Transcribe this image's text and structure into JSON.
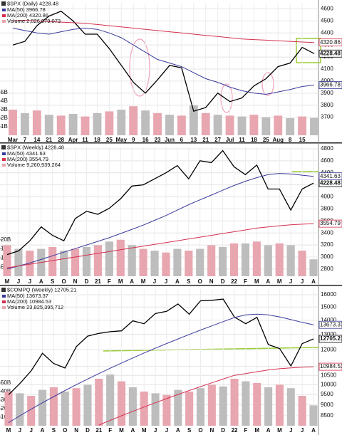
{
  "chart_data": [
    {
      "type": "line",
      "title": "$SPX (Daily) 4228.48",
      "log": false,
      "grid": true,
      "categories": [
        "Mar",
        "7",
        "14",
        "21",
        "28",
        "Apr",
        "11",
        "18",
        "25",
        "May",
        "9",
        "16",
        "23",
        "Jun",
        "6",
        "13",
        "21",
        "27",
        "Jul",
        "11",
        "18",
        "25",
        "Aug",
        "8",
        "15",
        null
      ],
      "series": [
        {
          "color": "#000000",
          "values": [
            4300,
            4330,
            4460,
            4540,
            4580,
            4500,
            4390,
            4390,
            4270,
            4130,
            3990,
            3900,
            4010,
            4130,
            4110,
            3750,
            3780,
            3900,
            3830,
            3860,
            3960,
            4020,
            4120,
            4150,
            4280,
            4228.48
          ]
        },
        {
          "name": "MA(50) 3966.78",
          "color": "#3a3a9c",
          "values": [
            4440,
            4420,
            4400,
            4390,
            4410,
            4430,
            4440,
            4430,
            4400,
            4360,
            4300,
            4240,
            4180,
            4150,
            4120,
            4070,
            4020,
            3990,
            3950,
            3920,
            3900,
            3890,
            3910,
            3930,
            3955,
            3966.78
          ]
        },
        {
          "name": "MA(200) 4320.86",
          "color": "#d4304f",
          "values": [
            4500,
            4505,
            4500,
            4495,
            4490,
            4485,
            4480,
            4470,
            4460,
            4450,
            4440,
            4430,
            4420,
            4410,
            4400,
            4390,
            4380,
            4370,
            4360,
            4350,
            4345,
            4340,
            4335,
            4330,
            4325,
            4320.86
          ]
        },
        {
          "name": "Volume 2,026,979,073",
          "color": "#e8a6b0",
          "axis": "y2",
          "type": "bar",
          "values": [
            3.0,
            2.6,
            2.9,
            2.4,
            2.3,
            2.5,
            2.2,
            2.6,
            2.8,
            3.0,
            3.4,
            2.9,
            2.6,
            2.4,
            2.3,
            3.5,
            2.6,
            2.4,
            2.3,
            2.2,
            2.4,
            2.1,
            2.3,
            2.0,
            2.2,
            2.03
          ]
        }
      ],
      "ylim": [
        3550,
        4650
      ],
      "yticks": [
        3700,
        3800,
        3900,
        4000,
        4100,
        4200,
        4300,
        4400,
        4500,
        4600
      ],
      "y2lim": [
        0,
        15.5
      ],
      "y2ticks": [
        {
          "value": 1,
          "label": "1B"
        },
        {
          "value": 2,
          "label": "2B"
        },
        {
          "value": 3,
          "label": "3B"
        },
        {
          "value": 4,
          "label": "4B"
        },
        {
          "value": 5,
          "label": "5B"
        }
      ]
    },
    {
      "type": "line",
      "title": "$SPX (Weekly) 4228.48",
      "log": false,
      "grid": true,
      "categories": [
        "M",
        "J",
        "J",
        "A",
        "S",
        "O",
        "N",
        "D",
        "21",
        "F",
        "M",
        "A",
        "M",
        "J",
        "J",
        "A",
        "S",
        "O",
        "N",
        "D",
        "22",
        "F",
        "M",
        "A",
        "M",
        "J",
        "J",
        "A"
      ],
      "series": [
        {
          "color": "#000000",
          "values": [
            3040,
            3100,
            3270,
            3500,
            3360,
            3270,
            3640,
            3760,
            3710,
            3810,
            3970,
            4180,
            4200,
            4300,
            4400,
            4520,
            4300,
            4600,
            4570,
            4770,
            4500,
            4370,
            4530,
            4130,
            4130,
            3780,
            4130,
            4228.48
          ]
        },
        {
          "name": "MA(50) 4341.63",
          "color": "#3a3a9c",
          "values": [
            2800,
            2850,
            2900,
            2960,
            3020,
            3080,
            3140,
            3200,
            3260,
            3320,
            3390,
            3460,
            3530,
            3610,
            3690,
            3780,
            3870,
            3950,
            4030,
            4110,
            4190,
            4260,
            4320,
            4370,
            4390,
            4380,
            4360,
            4341.63
          ]
        },
        {
          "name": "MA(200) 3554.79",
          "color": "#d4304f",
          "values": [
            2820,
            2850,
            2880,
            2910,
            2940,
            2970,
            3000,
            3030,
            3060,
            3090,
            3120,
            3150,
            3180,
            3210,
            3240,
            3270,
            3300,
            3330,
            3360,
            3390,
            3420,
            3450,
            3480,
            3500,
            3520,
            3535,
            3545,
            3554.79
          ]
        },
        {
          "name": "Volume 9,260,939,264",
          "color": "#e8a6b0",
          "axis": "y2",
          "type": "bar",
          "values": [
            17,
            15,
            14,
            15,
            16,
            14,
            15,
            16,
            17,
            19,
            20,
            17,
            15,
            14,
            13,
            15,
            14,
            15,
            17,
            16,
            18,
            18,
            19,
            17,
            18,
            17,
            14,
            9.26
          ]
        }
      ],
      "ylim": [
        2680,
        4835
      ],
      "yticks": [
        2800,
        3000,
        3200,
        3400,
        3600,
        3800,
        4000,
        4200,
        4400,
        4600,
        4800
      ],
      "y2lim": [
        0,
        71
      ],
      "y2ticks": [
        {
          "value": 5,
          "label": "5B"
        },
        {
          "value": 10,
          "label": "10B"
        },
        {
          "value": 15,
          "label": "15B"
        },
        {
          "value": 20,
          "label": "20B"
        }
      ]
    },
    {
      "type": "line",
      "title": "$COMPQ (Weekly) 12705.21",
      "log": true,
      "grid": true,
      "categories": [
        "M",
        "J",
        "J",
        "A",
        "S",
        "O",
        "N",
        "D",
        "21",
        "F",
        "M",
        "A",
        "M",
        "J",
        "J",
        "A",
        "S",
        "O",
        "N",
        "D",
        "22",
        "F",
        "M",
        "A",
        "M",
        "J",
        "J",
        "A"
      ],
      "series": [
        {
          "color": "#000000",
          "values": [
            9490,
            10060,
            10750,
            11780,
            11170,
            10910,
            12200,
            12890,
            13070,
            13190,
            13250,
            13960,
            13750,
            14500,
            14670,
            15250,
            14450,
            15500,
            15540,
            15640,
            14240,
            13750,
            14220,
            12330,
            12080,
            11030,
            12390,
            12705.21
          ]
        },
        {
          "name": "MA(50) 13673.37",
          "color": "#3a3a9c",
          "values": [
            8200,
            8500,
            8800,
            9100,
            9400,
            9700,
            10000,
            10300,
            10600,
            10900,
            11200,
            11500,
            11800,
            12100,
            12400,
            12700,
            13000,
            13300,
            13600,
            13900,
            14200,
            14400,
            14450,
            14400,
            14250,
            14050,
            13850,
            13673.37
          ]
        },
        {
          "name": "MA(200) 10984.53",
          "color": "#d4304f",
          "values": [
            null,
            null,
            null,
            null,
            null,
            null,
            null,
            null,
            8100,
            8300,
            8500,
            8700,
            8900,
            9100,
            9300,
            9500,
            9700,
            9900,
            10100,
            10300,
            10500,
            10600,
            10700,
            10800,
            10870,
            10920,
            10960,
            10984.53
          ]
        },
        {
          "name": "Volume 23,825,395,712",
          "color": "#e8a6b0",
          "axis": "y2",
          "type": "bar",
          "values": [
            40,
            38,
            35,
            42,
            45,
            40,
            44,
            48,
            55,
            60,
            52,
            45,
            40,
            38,
            36,
            42,
            40,
            44,
            48,
            46,
            55,
            52,
            50,
            45,
            48,
            44,
            35,
            23.83
          ]
        }
      ],
      "ylim": [
        8070,
        16480
      ],
      "yticks": [
        8500,
        9000,
        9500,
        10000,
        10500,
        11000,
        12000,
        13000,
        14000,
        15000,
        16000
      ],
      "y2lim": [
        0,
        160
      ],
      "y2ticks": [
        {
          "value": 10,
          "label": "10B"
        },
        {
          "value": 20,
          "label": "20B"
        },
        {
          "value": 30,
          "label": "30B"
        },
        {
          "value": 40,
          "label": "40B"
        },
        {
          "value": 50,
          "label": "50B"
        }
      ]
    }
  ]
}
